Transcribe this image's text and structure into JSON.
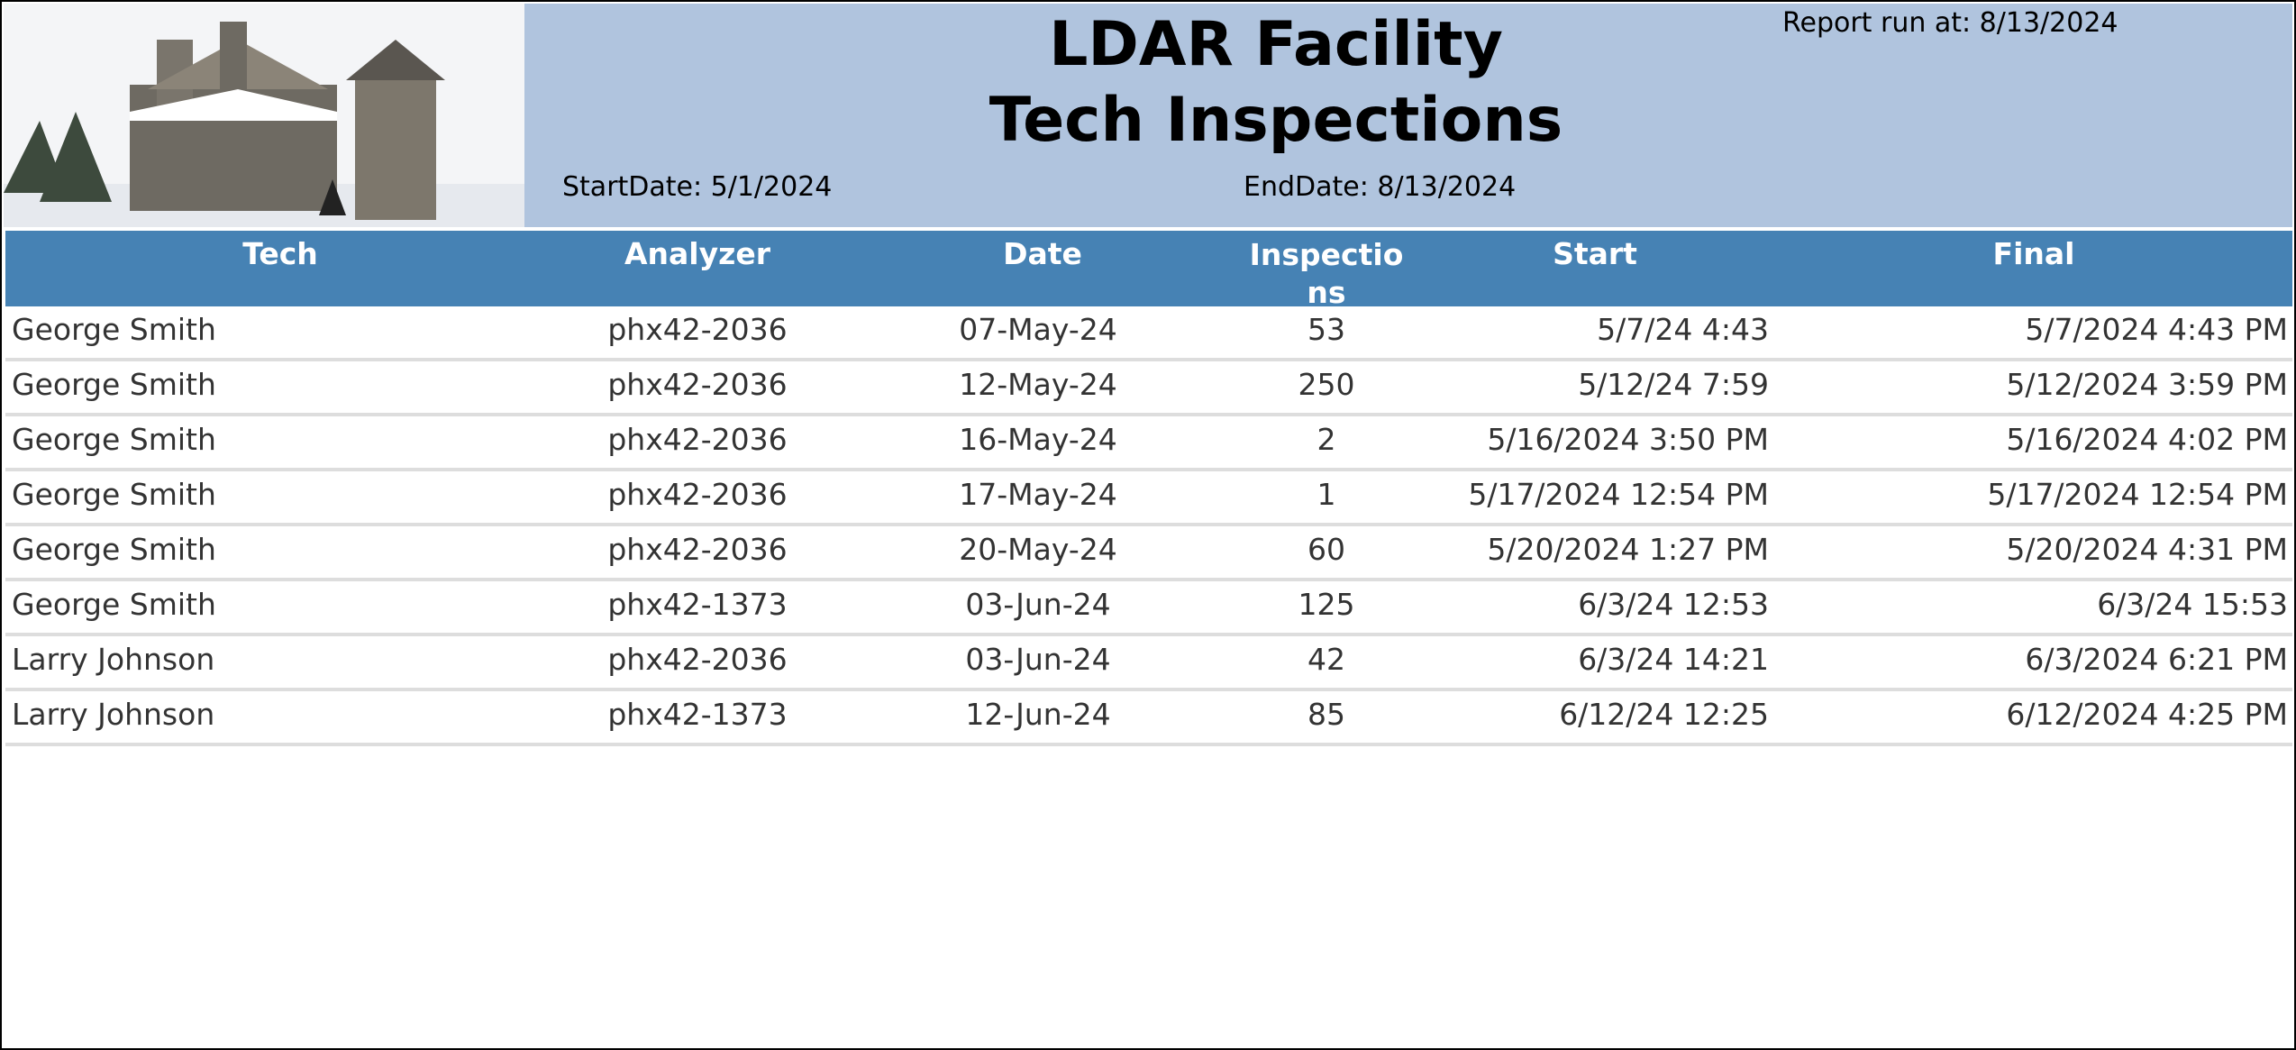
{
  "header": {
    "title_line1": "LDAR Facility",
    "title_line2": "Tech Inspections",
    "report_run": "Report run at: 8/13/2024",
    "start_date": "StartDate: 5/1/2024",
    "end_date": "EndDate: 8/13/2024"
  },
  "table": {
    "columns": [
      "Tech",
      "Analyzer",
      "Date",
      "Inspections",
      "Start",
      "Final"
    ],
    "rows": [
      [
        "George Smith",
        "phx42-2036",
        "07-May-24",
        53,
        "5/7/24 4:43",
        "5/7/2024 4:43 PM"
      ],
      [
        "George Smith",
        "phx42-2036",
        "12-May-24",
        250,
        "5/12/24 7:59",
        "5/12/2024 3:59 PM"
      ],
      [
        "George Smith",
        "phx42-2036",
        "16-May-24",
        2,
        "5/16/2024 3:50 PM",
        "5/16/2024 4:02 PM"
      ],
      [
        "George Smith",
        "phx42-2036",
        "17-May-24",
        1,
        "5/17/2024 12:54 PM",
        "5/17/2024 12:54 PM"
      ],
      [
        "George Smith",
        "phx42-2036",
        "20-May-24",
        60,
        "5/20/2024 1:27 PM",
        "5/20/2024 4:31 PM"
      ],
      [
        "George Smith",
        "phx42-1373",
        "03-Jun-24",
        125,
        "6/3/24 12:53",
        "6/3/24 15:53"
      ],
      [
        "Larry Johnson",
        "phx42-2036",
        "03-Jun-24",
        42,
        "6/3/24 14:21",
        "6/3/2024 6:21 PM"
      ],
      [
        "Larry Johnson",
        "phx42-1373",
        "12-Jun-24",
        85,
        "6/12/24 12:25",
        "6/12/2024 4:25 PM"
      ]
    ]
  }
}
